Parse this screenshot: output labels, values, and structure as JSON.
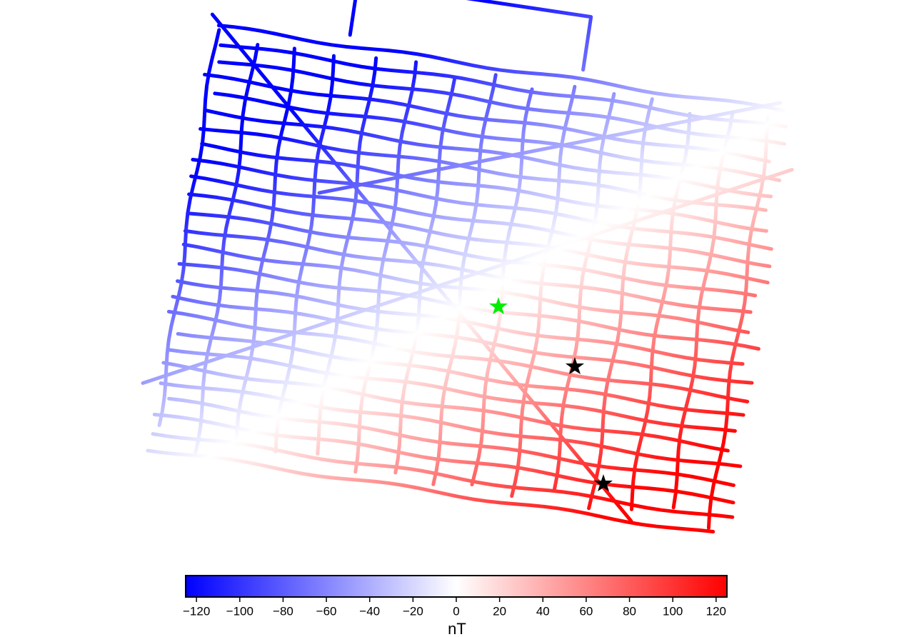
{
  "colorbar": {
    "label": "nT",
    "lim": [
      -125,
      125
    ],
    "colors": [
      "#0000ff",
      "#ffffff",
      "#ff0000"
    ],
    "ticks": [
      {
        "value": -120,
        "label": "−120"
      },
      {
        "value": -100,
        "label": "−100"
      },
      {
        "value": -80,
        "label": "−80"
      },
      {
        "value": -60,
        "label": "−60"
      },
      {
        "value": -40,
        "label": "−40"
      },
      {
        "value": -20,
        "label": "−20"
      },
      0,
      20,
      40,
      60,
      80,
      100,
      120
    ]
  }
}
